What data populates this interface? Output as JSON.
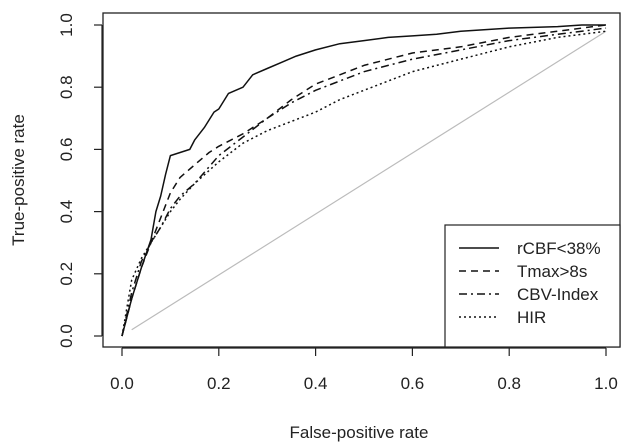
{
  "chart_data": {
    "type": "line",
    "title": "",
    "xlabel": "False-positive rate",
    "ylabel": "True-positive rate",
    "xlim": [
      0.0,
      1.0
    ],
    "ylim": [
      0.0,
      1.0
    ],
    "x_ticks": [
      "0.0",
      "0.2",
      "0.4",
      "0.6",
      "0.8",
      "1.0"
    ],
    "y_ticks": [
      "0.0",
      "0.2",
      "0.4",
      "0.6",
      "0.8",
      "1.0"
    ],
    "grid": false,
    "legend_position": "bottom-right",
    "reference_line": {
      "x": [
        0.02,
        1.0
      ],
      "y": [
        0.02,
        0.98
      ],
      "color": "#bbbbbb"
    },
    "series": [
      {
        "name": "rCBF<38%",
        "dash": "solid",
        "x": [
          0.0,
          0.02,
          0.04,
          0.06,
          0.07,
          0.08,
          0.09,
          0.1,
          0.12,
          0.14,
          0.15,
          0.17,
          0.19,
          0.2,
          0.22,
          0.25,
          0.27,
          0.3,
          0.33,
          0.36,
          0.4,
          0.45,
          0.5,
          0.55,
          0.6,
          0.65,
          0.7,
          0.8,
          0.9,
          0.95,
          1.0
        ],
        "y": [
          0.0,
          0.12,
          0.22,
          0.31,
          0.4,
          0.45,
          0.52,
          0.58,
          0.59,
          0.6,
          0.63,
          0.67,
          0.72,
          0.73,
          0.78,
          0.8,
          0.84,
          0.86,
          0.88,
          0.9,
          0.92,
          0.94,
          0.95,
          0.96,
          0.965,
          0.97,
          0.98,
          0.99,
          0.995,
          1.0,
          1.0
        ]
      },
      {
        "name": "Tmax>8s",
        "dash": "dashed",
        "x": [
          0.0,
          0.02,
          0.04,
          0.06,
          0.08,
          0.1,
          0.12,
          0.15,
          0.18,
          0.2,
          0.25,
          0.3,
          0.35,
          0.4,
          0.45,
          0.5,
          0.55,
          0.6,
          0.7,
          0.8,
          0.9,
          1.0
        ],
        "y": [
          0.0,
          0.12,
          0.22,
          0.3,
          0.38,
          0.46,
          0.51,
          0.55,
          0.59,
          0.61,
          0.65,
          0.7,
          0.76,
          0.81,
          0.84,
          0.87,
          0.89,
          0.91,
          0.93,
          0.96,
          0.98,
          1.0
        ]
      },
      {
        "name": "CBV-Index",
        "dash": "dashdot",
        "x": [
          0.0,
          0.02,
          0.04,
          0.06,
          0.08,
          0.1,
          0.12,
          0.15,
          0.2,
          0.25,
          0.3,
          0.35,
          0.4,
          0.45,
          0.5,
          0.55,
          0.6,
          0.7,
          0.8,
          0.9,
          1.0
        ],
        "y": [
          0.0,
          0.14,
          0.24,
          0.3,
          0.35,
          0.41,
          0.45,
          0.49,
          0.58,
          0.64,
          0.7,
          0.75,
          0.79,
          0.82,
          0.85,
          0.87,
          0.89,
          0.92,
          0.95,
          0.97,
          0.99
        ]
      },
      {
        "name": "HIR",
        "dash": "dotted",
        "x": [
          0.0,
          0.02,
          0.04,
          0.06,
          0.08,
          0.1,
          0.12,
          0.15,
          0.2,
          0.25,
          0.3,
          0.35,
          0.4,
          0.45,
          0.5,
          0.55,
          0.6,
          0.7,
          0.8,
          0.9,
          1.0
        ],
        "y": [
          0.0,
          0.18,
          0.25,
          0.3,
          0.35,
          0.4,
          0.44,
          0.49,
          0.56,
          0.62,
          0.66,
          0.69,
          0.72,
          0.76,
          0.79,
          0.82,
          0.85,
          0.89,
          0.93,
          0.96,
          0.98
        ]
      }
    ]
  }
}
